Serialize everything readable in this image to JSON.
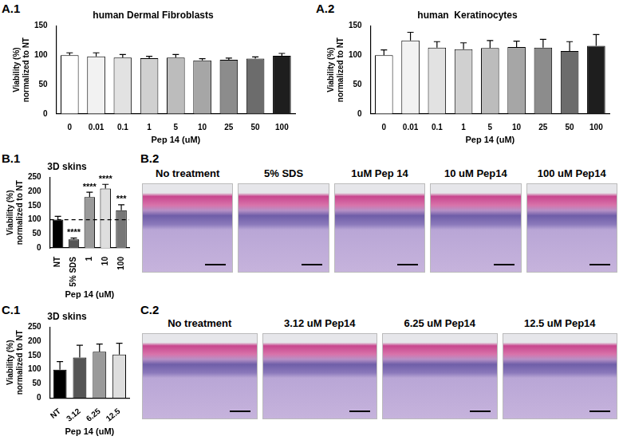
{
  "chart_data": [
    {
      "panel": "A.1",
      "type": "bar",
      "title": "human Dermal Fibroblasts",
      "x_label": "Pep 14 (uM)",
      "y_label": [
        "Viability (%)",
        "normalized to NT"
      ],
      "categories": [
        "0",
        "0.01",
        "0.1",
        "1",
        "5",
        "10",
        "25",
        "50",
        "100"
      ],
      "values": [
        100,
        98,
        96,
        95,
        96,
        91,
        92,
        94,
        99
      ],
      "errors": [
        4,
        6,
        5,
        3,
        5,
        3,
        3,
        3,
        4
      ],
      "colors": [
        "#ffffff",
        "#f2f2f2",
        "#e2e2e2",
        "#d0d0d0",
        "#bcbcbc",
        "#a6a6a6",
        "#8c8c8c",
        "#6c6c6c",
        "#1e1e1e"
      ],
      "ylim": [
        0,
        150
      ],
      "yticks": [
        0,
        50,
        100,
        150
      ],
      "grid": false
    },
    {
      "panel": "A.2",
      "type": "bar",
      "title": "human  Keratinocytes",
      "x_label": "Pep 14 (uM)",
      "y_label": [
        "Viability (%)",
        "normalized to NT"
      ],
      "categories": [
        "0",
        "0.01",
        "0.1",
        "1",
        "5",
        "10",
        "25",
        "50",
        "100"
      ],
      "values": [
        100,
        125,
        113,
        110,
        112,
        114,
        113,
        107,
        116
      ],
      "errors": [
        9,
        14,
        10,
        11,
        13,
        10,
        14,
        16,
        19
      ],
      "colors": [
        "#ffffff",
        "#f2f2f2",
        "#e2e2e2",
        "#d0d0d0",
        "#bcbcbc",
        "#a6a6a6",
        "#8c8c8c",
        "#6c6c6c",
        "#1e1e1e"
      ],
      "ylim": [
        0,
        150
      ],
      "yticks": [
        0,
        50,
        100,
        150
      ],
      "grid": false
    },
    {
      "panel": "B.1",
      "type": "bar",
      "title": "3D skins",
      "x_label": "Pep 14 (uM)",
      "y_label": [
        "Viability (%)",
        "normalized to NT"
      ],
      "categories": [
        "NT",
        "5% SDS",
        "1",
        "10",
        "100"
      ],
      "values": [
        100,
        30,
        180,
        210,
        133
      ],
      "errors": [
        12,
        5,
        17,
        15,
        20
      ],
      "annotations": [
        null,
        "****",
        "****",
        "****",
        "***"
      ],
      "reference_line": 100,
      "colors": [
        "#000000",
        "#555555",
        "#9a9a9a",
        "#dedede",
        "#777777"
      ],
      "ylim": [
        0,
        250
      ],
      "yticks": [
        0,
        50,
        100,
        150,
        200,
        250
      ],
      "grid": false
    },
    {
      "panel": "C.1",
      "type": "bar",
      "title": "3D skins",
      "x_label": "Pep 14 (uM)",
      "y_label": [
        "Viability (%)",
        "normalized to NT"
      ],
      "categories": [
        "NT",
        "3.12",
        "6.25",
        "12.5"
      ],
      "values": [
        100,
        143,
        163,
        153
      ],
      "errors": [
        28,
        43,
        27,
        40
      ],
      "colors": [
        "#000000",
        "#555555",
        "#9a9a9a",
        "#dedede"
      ],
      "ylim": [
        0,
        250
      ],
      "yticks": [
        0,
        50,
        100,
        150,
        200,
        250
      ],
      "grid": false
    }
  ],
  "image_panels": [
    {
      "panel": "B.2",
      "captions": [
        "No treatment",
        "5%  SDS",
        "1uM Pep 14",
        "10 uM Pep14",
        "100 uM Pep14"
      ]
    },
    {
      "panel": "C.2",
      "captions": [
        "No treatment",
        "3.12 uM Pep14",
        "6.25 uM Pep14",
        "12.5 uM Pep14"
      ]
    }
  ]
}
